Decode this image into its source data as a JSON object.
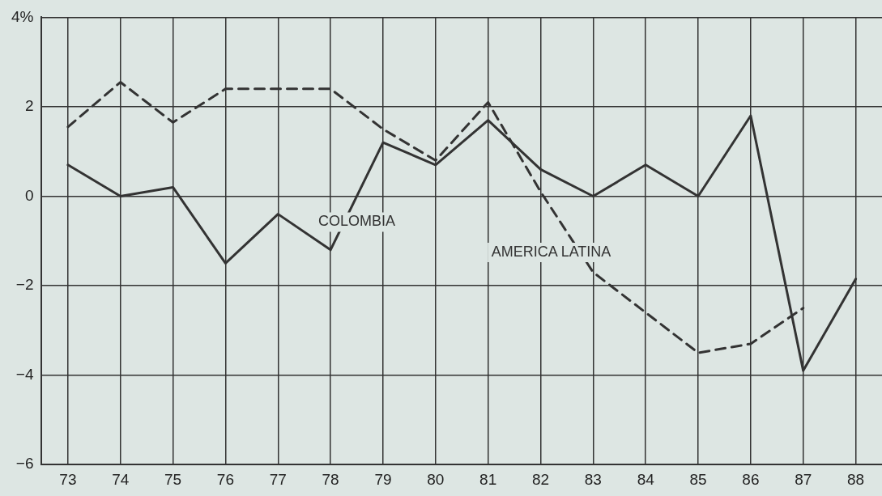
{
  "chart_data": {
    "type": "line",
    "categories": [
      "73",
      "74",
      "75",
      "76",
      "77",
      "78",
      "79",
      "80",
      "81",
      "82",
      "83",
      "84",
      "85",
      "86",
      "87",
      "88"
    ],
    "series": [
      {
        "name": "COLOMBIA",
        "color": "#333333",
        "line_style": "solid",
        "values": [
          0.7,
          0,
          0.2,
          -1.5,
          -0.4,
          -1.2,
          1.2,
          0.7,
          1.7,
          0.6,
          0,
          0.7,
          0,
          1.8,
          -3.9,
          -1.85
        ]
      },
      {
        "name": "AMERICA LATINA",
        "color": "#333333",
        "line_style": "dashed",
        "values": [
          1.55,
          2.55,
          1.65,
          2.4,
          2.4,
          2.4,
          1.5,
          0.8,
          2.1,
          0.1,
          -1.7,
          -2.6,
          -3.5,
          -3.3,
          -2.5,
          null
        ]
      }
    ],
    "ylim": [
      -6,
      4
    ],
    "yticks": [
      -6,
      -4,
      -2,
      0,
      2,
      {
        "value": 4,
        "label": "4%"
      }
    ],
    "grid": true,
    "legend": false,
    "marker": "none"
  }
}
